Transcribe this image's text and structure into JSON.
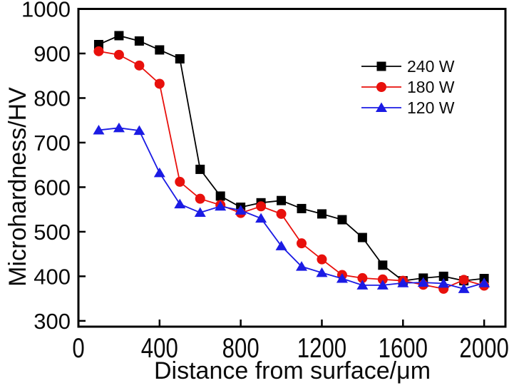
{
  "figure": {
    "background": "#ffffff",
    "frame_color": "#000000"
  },
  "chart_data": {
    "type": "line",
    "title": "",
    "xlabel": "Distance from surface/μm",
    "ylabel": "Microhardness/HV",
    "x": [
      100,
      200,
      300,
      400,
      500,
      600,
      700,
      800,
      900,
      1000,
      1100,
      1200,
      1300,
      1400,
      1500,
      1600,
      1700,
      1800,
      1900,
      2000
    ],
    "series": [
      {
        "name": "240 W",
        "marker": "square",
        "color": "#000000",
        "values": [
          920,
          940,
          928,
          908,
          888,
          640,
          580,
          555,
          565,
          570,
          552,
          540,
          527,
          487,
          425,
          390,
          396,
          400,
          390,
          395
        ]
      },
      {
        "name": "180 W",
        "marker": "circle",
        "color": "#e8100c",
        "values": [
          905,
          897,
          873,
          832,
          612,
          574,
          560,
          542,
          557,
          540,
          474,
          438,
          403,
          396,
          393,
          390,
          381,
          372,
          392,
          379
        ]
      },
      {
        "name": "120 W",
        "marker": "triangle",
        "color": "#1b1be4",
        "values": [
          728,
          733,
          727,
          632,
          562,
          543,
          557,
          548,
          530,
          468,
          422,
          408,
          395,
          380,
          380,
          385,
          386,
          384,
          372,
          385
        ]
      }
    ],
    "xlim": [
      0,
      2105
    ],
    "ylim": [
      287,
      1000
    ],
    "xticks": [
      0,
      400,
      800,
      1200,
      1600,
      2000
    ],
    "yticks": [
      300,
      400,
      500,
      600,
      700,
      800,
      900,
      1000
    ],
    "grid": false,
    "legend_position": "upper-right-inside"
  }
}
